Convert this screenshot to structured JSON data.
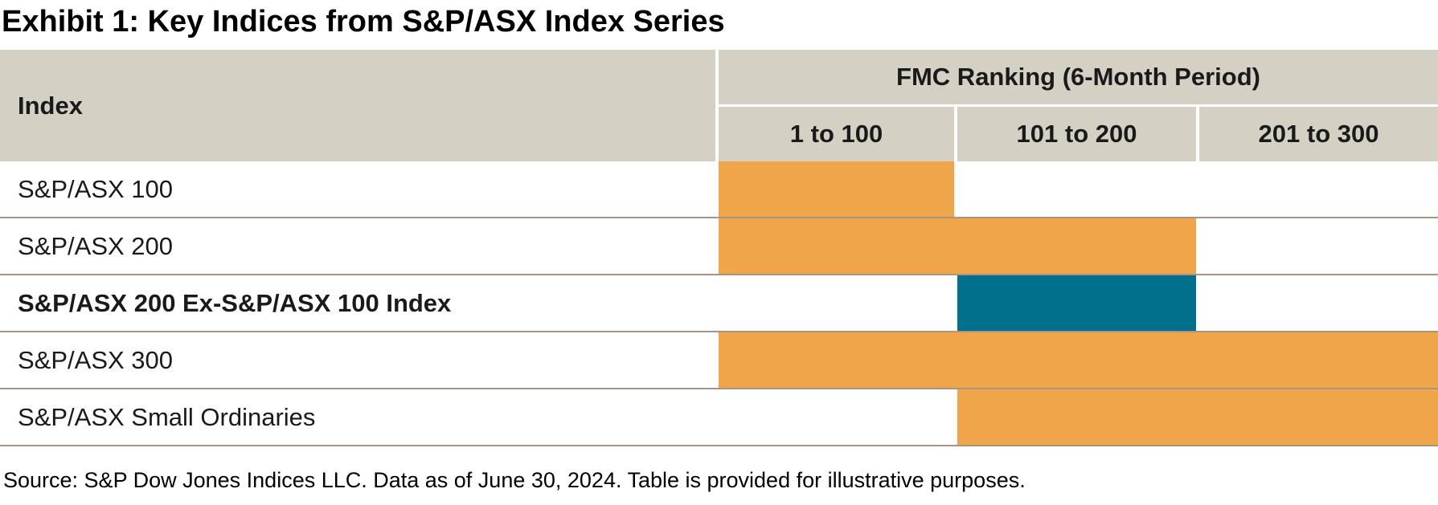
{
  "title": "Exhibit 1: Key Indices from S&P/ASX Index Series",
  "source": "Source: S&P Dow Jones Indices LLC. Data as of June 30, 2024. Table is provided for illustrative purposes.",
  "colors": {
    "orange": "#F0A54A",
    "teal": "#00708C",
    "header_bg": "#D5D0C4",
    "divider": "#AA9380"
  },
  "table": {
    "index_header": "Index",
    "group_header": "FMC Ranking (6-Month Period)",
    "columns": [
      "1 to 100",
      "101 to 200",
      "201 to 300"
    ],
    "rows": [
      {
        "label": "S&P/ASX 100",
        "bold": false,
        "bar": {
          "from": 0,
          "to": 0,
          "color": "orange"
        }
      },
      {
        "label": "S&P/ASX 200",
        "bold": false,
        "bar": {
          "from": 0,
          "to": 1,
          "color": "orange"
        }
      },
      {
        "label": "S&P/ASX 200 Ex-S&P/ASX 100 Index",
        "bold": true,
        "bar": {
          "from": 1,
          "to": 1,
          "color": "teal"
        }
      },
      {
        "label": "S&P/ASX 300",
        "bold": false,
        "bar": {
          "from": 0,
          "to": 2,
          "color": "orange"
        }
      },
      {
        "label": "S&P/ASX Small Ordinaries",
        "bold": false,
        "bar": {
          "from": 1,
          "to": 2,
          "color": "orange"
        }
      }
    ]
  },
  "chart_data": {
    "type": "table",
    "title": "Exhibit 1: Key Indices from S&P/ASX Index Series",
    "column_group": "FMC Ranking (6-Month Period)",
    "columns": [
      "1 to 100",
      "101 to 200",
      "201 to 300"
    ],
    "rows": [
      {
        "index": "S&P/ASX 100",
        "coverage": [
          "1 to 100"
        ],
        "color": "#F0A54A"
      },
      {
        "index": "S&P/ASX 200",
        "coverage": [
          "1 to 100",
          "101 to 200"
        ],
        "color": "#F0A54A"
      },
      {
        "index": "S&P/ASX 200 Ex-S&P/ASX 100 Index",
        "coverage": [
          "101 to 200"
        ],
        "color": "#00708C"
      },
      {
        "index": "S&P/ASX 300",
        "coverage": [
          "1 to 100",
          "101 to 200",
          "201 to 300"
        ],
        "color": "#F0A54A"
      },
      {
        "index": "S&P/ASX Small Ordinaries",
        "coverage": [
          "101 to 200",
          "201 to 300"
        ],
        "color": "#F0A54A"
      }
    ],
    "source_note": "Source: S&P Dow Jones Indices LLC. Data as of June 30, 2024. Table is provided for illustrative purposes.",
    "legend_position": "none",
    "grid": false
  }
}
